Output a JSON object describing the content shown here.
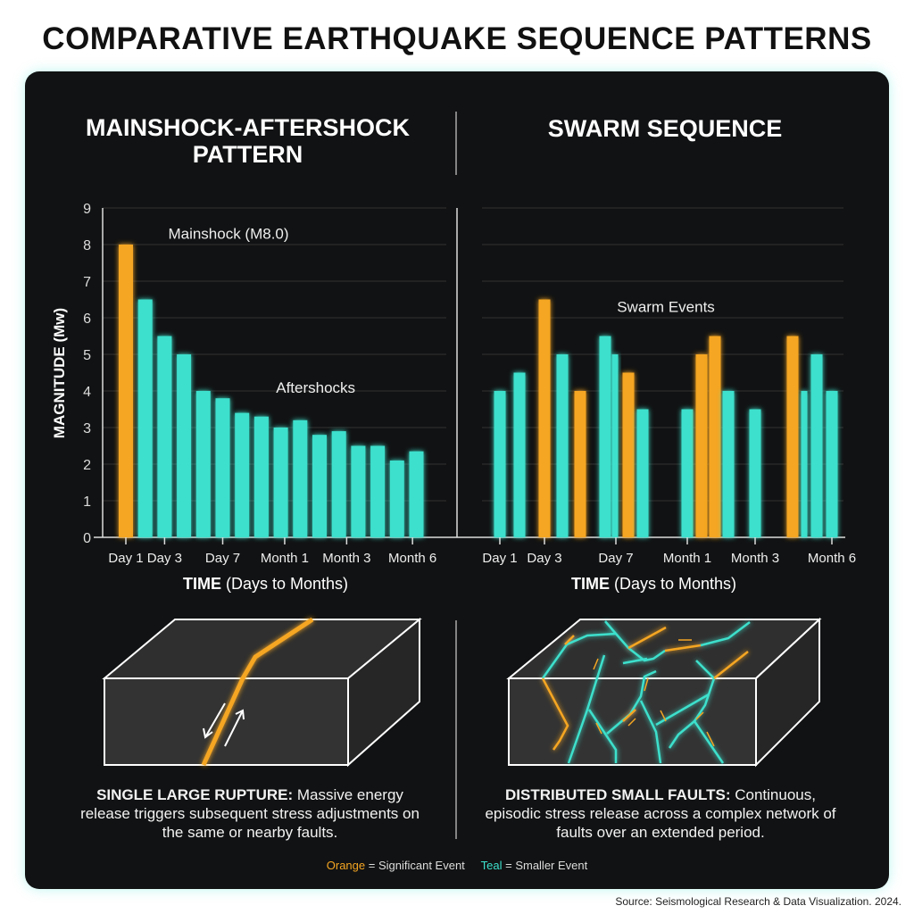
{
  "title": "COMPARATIVE EARTHQUAKE SEQUENCE PATTERNS",
  "colors": {
    "orange": "#f5a623",
    "teal": "#3de0cc",
    "panel": "#111213"
  },
  "left": {
    "heading": "MAINSHOCK-AFTERSHOCK PATTERN",
    "caption_bold": "SINGLE LARGE RUPTURE:",
    "caption_text": "Massive energy release triggers subsequent stress adjustments on the same or nearby faults."
  },
  "right": {
    "heading": "SWARM SEQUENCE",
    "caption_bold": "DISTRIBUTED SMALL FAULTS:",
    "caption_text": "Continuous, episodic stress release across a complex network of faults over an extended period."
  },
  "legend": {
    "orange_word": "Orange",
    "orange_text": "= Significant Event",
    "teal_word": "Teal",
    "teal_text": "= Smaller Event"
  },
  "source": "Source: Seismological Research & Data Visualization. 2024.",
  "chart_data": [
    {
      "type": "bar",
      "title": "MAINSHOCK-AFTERSHOCK PATTERN",
      "ylabel": "MAGNITUDE (Mw)",
      "xlabel_bold": "TIME",
      "xlabel_rest": "(Days to Months)",
      "ylim": [
        0,
        9
      ],
      "yticks": [
        0,
        1,
        2,
        3,
        4,
        5,
        6,
        7,
        8,
        9
      ],
      "grid": true,
      "xticks": [
        {
          "label": "Day 1",
          "t": 0
        },
        {
          "label": "Day 3",
          "t": 2
        },
        {
          "label": "Day 7",
          "t": 5
        },
        {
          "label": "Month 1",
          "t": 8.2
        },
        {
          "label": "Month 3",
          "t": 11.4
        },
        {
          "label": "Month 6",
          "t": 14.8
        }
      ],
      "annotations": [
        {
          "text": "Mainshock (M8.0)",
          "t": 5.3,
          "y": 8.3
        },
        {
          "text": "Aftershocks",
          "t": 9.8,
          "y": 4.1
        }
      ],
      "bars": [
        {
          "t": 0,
          "value": 8.0,
          "kind": "significant"
        },
        {
          "t": 1,
          "value": 6.5,
          "kind": "smaller"
        },
        {
          "t": 2,
          "value": 5.5,
          "kind": "smaller"
        },
        {
          "t": 3,
          "value": 5.0,
          "kind": "smaller"
        },
        {
          "t": 4,
          "value": 4.0,
          "kind": "smaller"
        },
        {
          "t": 5,
          "value": 3.8,
          "kind": "smaller"
        },
        {
          "t": 6,
          "value": 3.4,
          "kind": "smaller"
        },
        {
          "t": 7,
          "value": 3.3,
          "kind": "smaller"
        },
        {
          "t": 8,
          "value": 3.0,
          "kind": "smaller"
        },
        {
          "t": 9,
          "value": 3.2,
          "kind": "smaller"
        },
        {
          "t": 10,
          "value": 2.8,
          "kind": "smaller"
        },
        {
          "t": 11,
          "value": 2.9,
          "kind": "smaller"
        },
        {
          "t": 12,
          "value": 2.5,
          "kind": "smaller"
        },
        {
          "t": 13,
          "value": 2.5,
          "kind": "smaller"
        },
        {
          "t": 14,
          "value": 2.1,
          "kind": "smaller"
        },
        {
          "t": 15,
          "value": 2.35,
          "kind": "smaller"
        }
      ]
    },
    {
      "type": "bar",
      "title": "SWARM SEQUENCE",
      "xlabel_bold": "TIME",
      "xlabel_rest": "(Days to Months)",
      "ylim": [
        0,
        9
      ],
      "grid": true,
      "xticks": [
        {
          "label": "Day 1",
          "t": 1
        },
        {
          "label": "Day 3",
          "t": 3.5
        },
        {
          "label": "Day 7",
          "t": 7.5
        },
        {
          "label": "Month 1",
          "t": 11.5
        },
        {
          "label": "Month 3",
          "t": 15.3
        },
        {
          "label": "Month 6",
          "t": 19.6
        }
      ],
      "annotations": [
        {
          "text": "Swarm Events",
          "t": 10.3,
          "y": 6.3
        }
      ],
      "bars": [
        {
          "t": 1,
          "value": 4.0,
          "kind": "smaller"
        },
        {
          "t": 2.1,
          "value": 4.5,
          "kind": "smaller"
        },
        {
          "t": 3.5,
          "value": 6.5,
          "kind": "significant"
        },
        {
          "t": 4.5,
          "value": 5.0,
          "kind": "smaller"
        },
        {
          "t": 5.5,
          "value": 4.0,
          "kind": "significant"
        },
        {
          "t": 6.9,
          "value": 5.5,
          "kind": "smaller"
        },
        {
          "t": 7.45,
          "value": 5.0,
          "kind": "smaller",
          "thin": true
        },
        {
          "t": 8.2,
          "value": 4.5,
          "kind": "significant"
        },
        {
          "t": 9,
          "value": 3.5,
          "kind": "smaller"
        },
        {
          "t": 11.5,
          "value": 3.5,
          "kind": "smaller"
        },
        {
          "t": 12.3,
          "value": 5.0,
          "kind": "significant"
        },
        {
          "t": 13.05,
          "value": 5.5,
          "kind": "significant"
        },
        {
          "t": 13.8,
          "value": 4.0,
          "kind": "smaller"
        },
        {
          "t": 15.3,
          "value": 3.5,
          "kind": "smaller"
        },
        {
          "t": 17.4,
          "value": 5.5,
          "kind": "significant"
        },
        {
          "t": 18.05,
          "value": 4.0,
          "kind": "smaller",
          "thin": true
        },
        {
          "t": 18.75,
          "value": 5.0,
          "kind": "smaller"
        },
        {
          "t": 19.6,
          "value": 4.0,
          "kind": "smaller"
        }
      ]
    }
  ]
}
